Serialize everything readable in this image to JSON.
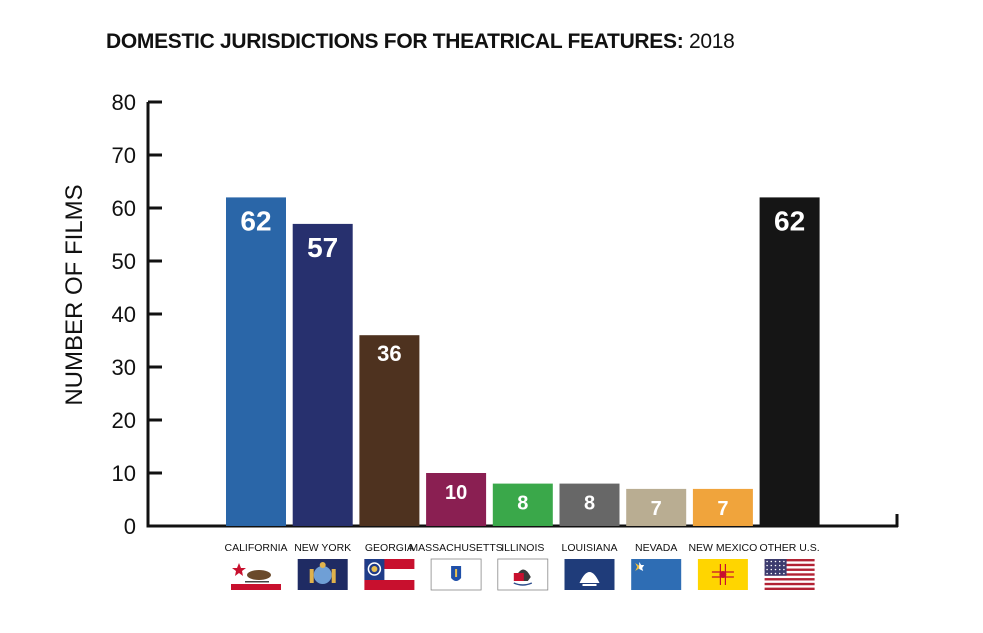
{
  "title_bold": "DOMESTIC JURISDICTIONS FOR THEATRICAL FEATURES:",
  "title_year": "2018",
  "chart_data": {
    "type": "bar",
    "title": "DOMESTIC JURISDICTIONS FOR THEATRICAL FEATURES: 2018",
    "xlabel": "",
    "ylabel": "NUMBER OF FILMS",
    "ylim": [
      0,
      80
    ],
    "yticks": [
      0,
      10,
      20,
      30,
      40,
      50,
      60,
      70,
      80
    ],
    "grid": false,
    "categories": [
      "CALIFORNIA",
      "NEW YORK",
      "GEORGIA",
      "MASSACHUSETTS",
      "ILLINOIS",
      "LOUISIANA",
      "NEVADA",
      "NEW MEXICO",
      "OTHER U.S."
    ],
    "values": [
      62,
      57,
      36,
      10,
      8,
      8,
      7,
      7,
      62
    ],
    "colors": [
      "#2a66a8",
      "#27306e",
      "#4e321f",
      "#8a1f52",
      "#3aa84a",
      "#676767",
      "#b9ad92",
      "#f0a43c",
      "#151515"
    ],
    "flags": [
      "california-flag",
      "new-york-flag",
      "georgia-flag",
      "massachusetts-flag",
      "illinois-flag",
      "louisiana-flag",
      "nevada-flag",
      "new-mexico-flag",
      "united-states-flag"
    ]
  }
}
